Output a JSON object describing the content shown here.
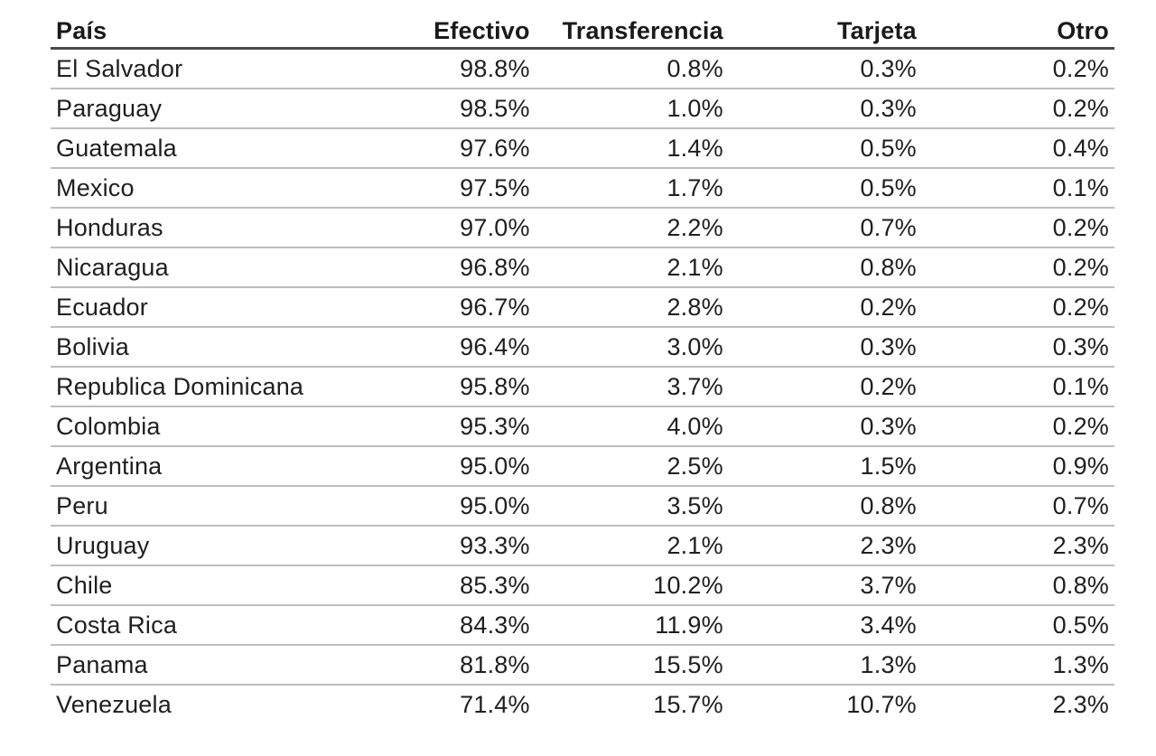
{
  "table": {
    "headers": [
      "País",
      "Efectivo",
      "Transferencia",
      "Tarjeta",
      "Otro"
    ],
    "rows": [
      [
        "El Salvador",
        "98.8%",
        "0.8%",
        "0.3%",
        "0.2%"
      ],
      [
        "Paraguay",
        "98.5%",
        "1.0%",
        "0.3%",
        "0.2%"
      ],
      [
        "Guatemala",
        "97.6%",
        "1.4%",
        "0.5%",
        "0.4%"
      ],
      [
        "Mexico",
        "97.5%",
        "1.7%",
        "0.5%",
        "0.1%"
      ],
      [
        "Honduras",
        "97.0%",
        "2.2%",
        "0.7%",
        "0.2%"
      ],
      [
        "Nicaragua",
        "96.8%",
        "2.1%",
        "0.8%",
        "0.2%"
      ],
      [
        "Ecuador",
        "96.7%",
        "2.8%",
        "0.2%",
        "0.2%"
      ],
      [
        "Bolivia",
        "96.4%",
        "3.0%",
        "0.3%",
        "0.3%"
      ],
      [
        "Republica Dominicana",
        "95.8%",
        "3.7%",
        "0.2%",
        "0.1%"
      ],
      [
        "Colombia",
        "95.3%",
        "4.0%",
        "0.3%",
        "0.2%"
      ],
      [
        "Argentina",
        "95.0%",
        "2.5%",
        "1.5%",
        "0.9%"
      ],
      [
        "Peru",
        "95.0%",
        "3.5%",
        "0.8%",
        "0.7%"
      ],
      [
        "Uruguay",
        "93.3%",
        "2.1%",
        "2.3%",
        "2.3%"
      ],
      [
        "Chile",
        "85.3%",
        "10.2%",
        "3.7%",
        "0.8%"
      ],
      [
        "Costa Rica",
        "84.3%",
        "11.9%",
        "3.4%",
        "0.5%"
      ],
      [
        "Panama",
        "81.8%",
        "15.5%",
        "1.3%",
        "1.3%"
      ],
      [
        "Venezuela",
        "71.4%",
        "15.7%",
        "10.7%",
        "2.3%"
      ]
    ]
  },
  "chart_data": {
    "type": "table",
    "title": "",
    "columns": [
      "País",
      "Efectivo",
      "Transferencia",
      "Tarjeta",
      "Otro"
    ],
    "categories": [
      "El Salvador",
      "Paraguay",
      "Guatemala",
      "Mexico",
      "Honduras",
      "Nicaragua",
      "Ecuador",
      "Bolivia",
      "Republica Dominicana",
      "Colombia",
      "Argentina",
      "Peru",
      "Uruguay",
      "Chile",
      "Costa Rica",
      "Panama",
      "Venezuela"
    ],
    "series": [
      {
        "name": "Efectivo",
        "unit": "%",
        "values": [
          98.8,
          98.5,
          97.6,
          97.5,
          97.0,
          96.8,
          96.7,
          96.4,
          95.8,
          95.3,
          95.0,
          95.0,
          93.3,
          85.3,
          84.3,
          81.8,
          71.4
        ]
      },
      {
        "name": "Transferencia",
        "unit": "%",
        "values": [
          0.8,
          1.0,
          1.4,
          1.7,
          2.2,
          2.1,
          2.8,
          3.0,
          3.7,
          4.0,
          2.5,
          3.5,
          2.1,
          10.2,
          11.9,
          15.5,
          15.7
        ]
      },
      {
        "name": "Tarjeta",
        "unit": "%",
        "values": [
          0.3,
          0.3,
          0.5,
          0.5,
          0.7,
          0.8,
          0.2,
          0.3,
          0.2,
          0.3,
          1.5,
          0.8,
          2.3,
          3.7,
          3.4,
          1.3,
          10.7
        ]
      },
      {
        "name": "Otro",
        "unit": "%",
        "values": [
          0.2,
          0.2,
          0.4,
          0.1,
          0.2,
          0.2,
          0.2,
          0.3,
          0.1,
          0.2,
          0.9,
          0.7,
          2.3,
          0.8,
          0.5,
          1.3,
          2.3
        ]
      }
    ]
  },
  "colors": {
    "text": "#1f1f1f",
    "header_rule": "#4a4a4a",
    "row_rule": "#bdbdbd",
    "background": "#ffffff"
  }
}
